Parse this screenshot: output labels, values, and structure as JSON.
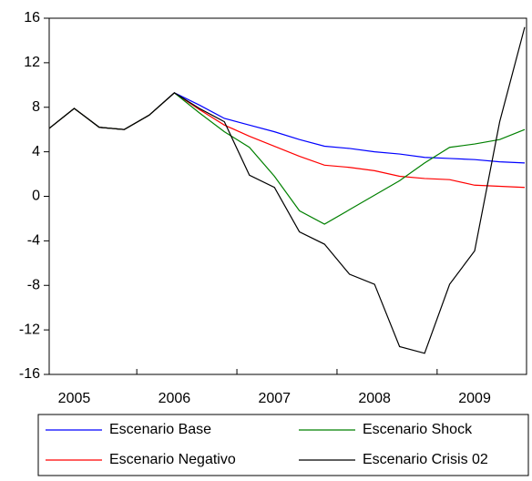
{
  "chart_data": {
    "type": "line",
    "categories": [
      null,
      "2005",
      null,
      null,
      null,
      "2006",
      null,
      null,
      null,
      "2007",
      null,
      null,
      null,
      "2008",
      null,
      null,
      null,
      "2009",
      null,
      null
    ],
    "series": [
      {
        "name": "Escenario Base",
        "color": "#0000ff",
        "values": [
          6.1,
          7.9,
          6.2,
          6.0,
          7.3,
          9.3,
          8.2,
          7.0,
          6.4,
          5.8,
          5.1,
          4.5,
          4.3,
          4.0,
          3.8,
          3.5,
          3.4,
          3.3,
          3.1,
          3.0
        ]
      },
      {
        "name": "Escenario Shock",
        "color": "#008000",
        "values": [
          6.1,
          7.9,
          6.2,
          6.0,
          7.3,
          9.3,
          7.5,
          5.8,
          4.4,
          1.8,
          -1.3,
          -2.5,
          -1.2,
          0.1,
          1.4,
          3.0,
          4.4,
          4.7,
          5.1,
          6.0
        ]
      },
      {
        "name": "Escenario Negativo",
        "color": "#ff0000",
        "values": [
          6.1,
          7.9,
          6.2,
          6.0,
          7.3,
          9.3,
          7.8,
          6.4,
          5.4,
          4.5,
          3.6,
          2.8,
          2.6,
          2.3,
          1.8,
          1.6,
          1.5,
          1.0,
          0.9,
          0.8
        ]
      },
      {
        "name": "Escenario Crisis 02",
        "color": "#000000",
        "values": [
          6.1,
          7.9,
          6.2,
          6.0,
          7.3,
          9.3,
          7.9,
          6.7,
          1.9,
          0.8,
          -3.2,
          -4.3,
          -7.0,
          -7.9,
          -13.5,
          -14.1,
          -7.9,
          -4.9,
          6.7,
          15.2
        ]
      }
    ],
    "ylim": [
      -16,
      16
    ],
    "yticks": [
      -16,
      -12,
      -8,
      -4,
      0,
      4,
      8,
      12,
      16
    ]
  }
}
